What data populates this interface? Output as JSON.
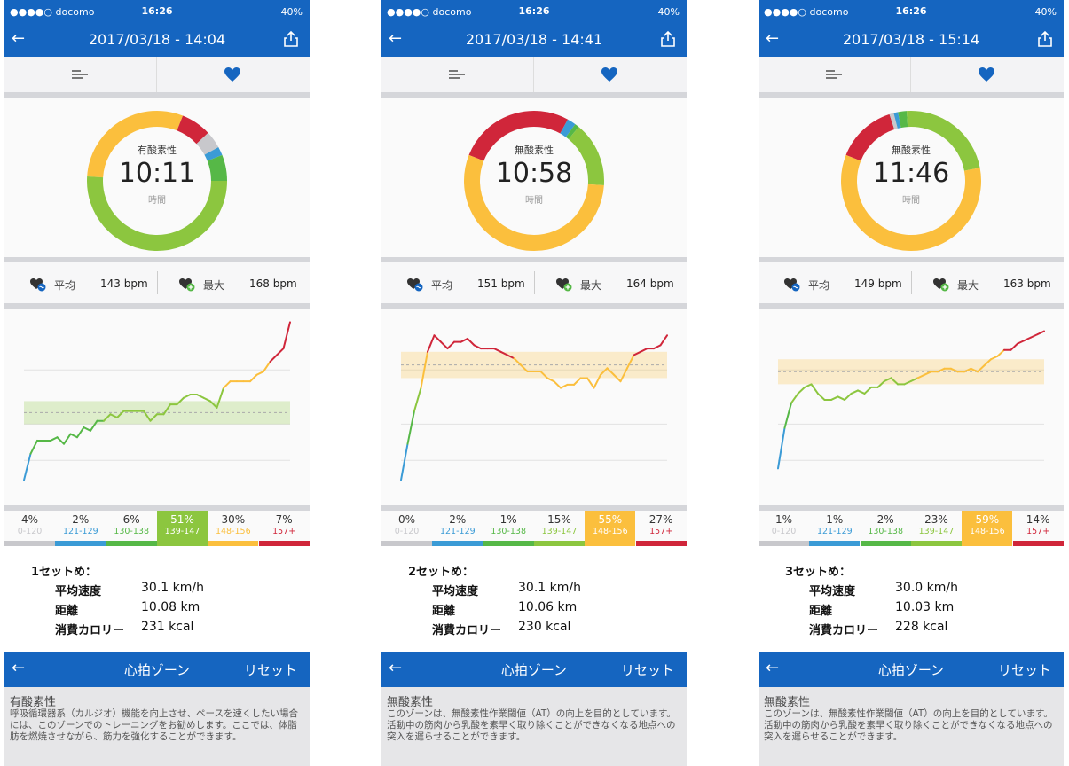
{
  "colors": {
    "nav": "#1565c0",
    "zones": [
      "#c8c8cc",
      "#3b9bd6",
      "#56b847",
      "#8cc63f",
      "#fbbf3d",
      "#d0263a"
    ]
  },
  "status": {
    "carrier": "●●●●○ docomo",
    "time": "16:26",
    "battery": "40%"
  },
  "zone_ranges": [
    "0-120",
    "121-129",
    "130-138",
    "139-147",
    "148-156",
    "157+"
  ],
  "labels": {
    "avg": "平均",
    "max": "最大",
    "time_unit": "時間",
    "speed": "平均速度",
    "distance": "距離",
    "calories": "消費カロリー"
  },
  "zone_nav": {
    "title": "心拍ゾーン",
    "reset": "リセット"
  },
  "panels": [
    {
      "title": "2017/03/18 - 14:04",
      "zone_name": "有酸素性",
      "duration": "10:11",
      "avg_bpm": "143 bpm",
      "max_bpm": "168 bpm",
      "zones": [
        "4%",
        "2%",
        "6%",
        "51%",
        "30%",
        "7%"
      ],
      "selected_zone": 3,
      "set_label": "1セットめ：",
      "speed": "30.1 km/h",
      "distance": "10.08 km",
      "calories": "231 kcal",
      "zone_title": "有酸素性",
      "zone_desc": "呼吸循環器系（カルジオ）機能を向上させ、ペースを速くしたい場合には、このゾーンでのトレーニングをお勧めします。ここでは、体脂肪を燃焼させながら、筋力を強化することができます。"
    },
    {
      "title": "2017/03/18 - 14:41",
      "zone_name": "無酸素性",
      "duration": "10:58",
      "avg_bpm": "151 bpm",
      "max_bpm": "164 bpm",
      "zones": [
        "0%",
        "2%",
        "1%",
        "15%",
        "55%",
        "27%"
      ],
      "selected_zone": 4,
      "set_label": "2セットめ：",
      "speed": "30.1 km/h",
      "distance": "10.06 km",
      "calories": "230 kcal",
      "zone_title": "無酸素性",
      "zone_desc": "このゾーンは、無酸素性作業閾値（AT）の向上を目的としています。活動中の筋肉から乳酸を素早く取り除くことができなくなる地点への突入を遅らせることができます。"
    },
    {
      "title": "2017/03/18 - 15:14",
      "zone_name": "無酸素性",
      "duration": "11:46",
      "avg_bpm": "149 bpm",
      "max_bpm": "163 bpm",
      "zones": [
        "1%",
        "1%",
        "2%",
        "23%",
        "59%",
        "14%"
      ],
      "selected_zone": 4,
      "set_label": "3セットめ：",
      "speed": "30.0 km/h",
      "distance": "10.03 km",
      "calories": "228 kcal",
      "zone_title": "無酸素性",
      "zone_desc": "このゾーンは、無酸素性作業閾値（AT）の向上を目的としています。活動中の筋肉から乳酸を素早く取り除くことができなくなる地点への突入を遅らせることができます。"
    }
  ],
  "chart_data": [
    {
      "type": "line",
      "title": "",
      "x": [
        0,
        1,
        2,
        3,
        4,
        5,
        6,
        7,
        8,
        9,
        10,
        11,
        12,
        13,
        14,
        15,
        16,
        17,
        18,
        19,
        20,
        21,
        22,
        23,
        24,
        25,
        26,
        27,
        28,
        29,
        30,
        31,
        32,
        33,
        34,
        35,
        36,
        37,
        38,
        39,
        40
      ],
      "y": [
        120,
        128,
        132,
        132,
        132,
        133,
        131,
        134,
        133,
        136,
        135,
        138,
        138,
        140,
        139,
        141,
        141,
        141,
        141,
        138,
        140,
        140,
        143,
        143,
        145,
        146,
        146,
        145,
        144,
        142,
        148,
        150,
        150,
        150,
        150,
        152,
        153,
        156,
        158,
        160,
        168
      ],
      "band": [
        137,
        144
      ],
      "ylim": [
        115,
        170
      ]
    },
    {
      "type": "line",
      "title": "",
      "x": [
        0,
        1,
        2,
        3,
        4,
        5,
        6,
        7,
        8,
        9,
        10,
        11,
        12,
        13,
        14,
        15,
        16,
        17,
        18,
        19,
        20,
        21,
        22,
        23,
        24,
        25,
        26,
        27,
        28,
        29,
        30,
        31,
        32,
        33,
        34,
        35,
        36,
        37,
        38,
        39,
        40
      ],
      "y": [
        120,
        131,
        141,
        148,
        159,
        164,
        162,
        160,
        162,
        162,
        163,
        161,
        160,
        160,
        160,
        159,
        158,
        157,
        155,
        153,
        153,
        153,
        151,
        150,
        148,
        149,
        149,
        151,
        151,
        148,
        152,
        154,
        152,
        150,
        154,
        158,
        159,
        160,
        160,
        161,
        164
      ],
      "band": [
        151,
        159
      ],
      "ylim": [
        115,
        170
      ]
    },
    {
      "type": "line",
      "title": "",
      "x": [
        0,
        1,
        2,
        3,
        4,
        5,
        6,
        7,
        8,
        9,
        10,
        11,
        12,
        13,
        14,
        15,
        16,
        17,
        18,
        19,
        20,
        21,
        22,
        23,
        24,
        25,
        26,
        27,
        28,
        29,
        30,
        31,
        32,
        33,
        34,
        35,
        36,
        37,
        38,
        39,
        40
      ],
      "y": [
        119,
        132,
        140,
        143,
        145,
        146,
        143,
        141,
        141,
        142,
        141,
        143,
        144,
        143,
        145,
        145,
        147,
        148,
        146,
        146,
        147,
        148,
        149,
        150,
        150,
        151,
        151,
        150,
        150,
        151,
        150,
        152,
        154,
        155,
        157,
        157,
        159,
        160,
        161,
        162,
        163
      ],
      "band": [
        146,
        154
      ],
      "ylim": [
        110,
        168
      ]
    }
  ]
}
